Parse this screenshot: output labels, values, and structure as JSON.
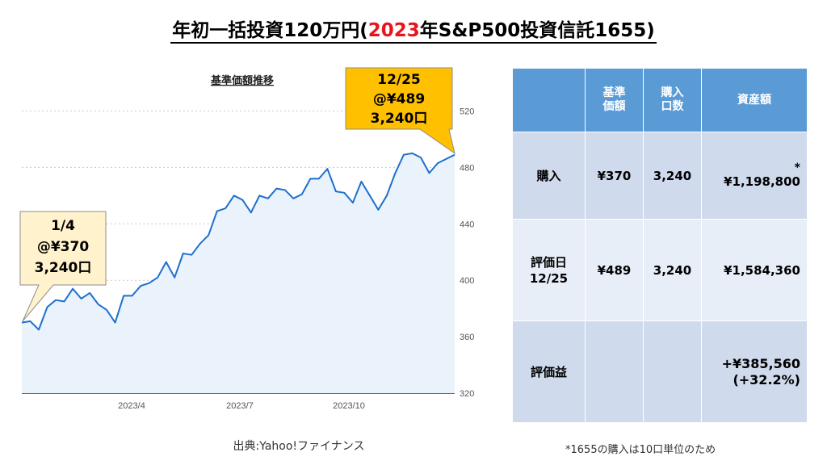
{
  "title": {
    "prefix": "年初一括投資120万円(",
    "year": "2023",
    "suffix": "年S&P500投資信託1655)"
  },
  "chart_data": {
    "type": "area",
    "title": "基準価額推移",
    "x_tick_labels": [
      "2023/4",
      "2023/7",
      "2023/10"
    ],
    "y_ticks": [
      320,
      360,
      400,
      440,
      480,
      520
    ],
    "ylim": [
      320,
      530
    ],
    "grid": true,
    "series": [
      {
        "values": [
          370,
          371,
          365,
          381,
          386,
          385,
          394,
          387,
          391,
          383,
          379,
          370,
          389,
          389,
          396,
          398,
          402,
          413,
          402,
          419,
          418,
          426,
          432,
          449,
          451,
          460,
          457,
          448,
          460,
          458,
          465,
          464,
          458,
          461,
          472,
          472,
          479,
          463,
          462,
          455,
          470,
          460,
          450,
          460,
          476,
          489,
          490,
          487,
          476,
          483,
          486,
          489
        ]
      }
    ],
    "color": "#1f6fce",
    "fill": "#eaf2fb",
    "annotations": [
      {
        "date": "1/4",
        "price": "@¥370",
        "units": "3,240口"
      },
      {
        "date": "12/25",
        "price": "@¥489",
        "units": "3,240口"
      }
    ]
  },
  "table": {
    "headers": [
      "",
      "基準\n価額",
      "購入\n口数",
      "資産額"
    ],
    "rows": [
      {
        "label": "購入",
        "price": "¥370",
        "units": "3,240",
        "asterisk": "*",
        "amount": "¥1,198,800"
      },
      {
        "label": "評価日\n12/25",
        "price": "¥489",
        "units": "3,240",
        "amount": "¥1,584,360"
      },
      {
        "label": "評価益",
        "price": "",
        "units": "",
        "amount": "+¥385,560",
        "percent": "(+32.2%)"
      }
    ]
  },
  "source": "出典:Yahoo!ファイナンス",
  "footnote": "*1655の購入は10口単位のため"
}
